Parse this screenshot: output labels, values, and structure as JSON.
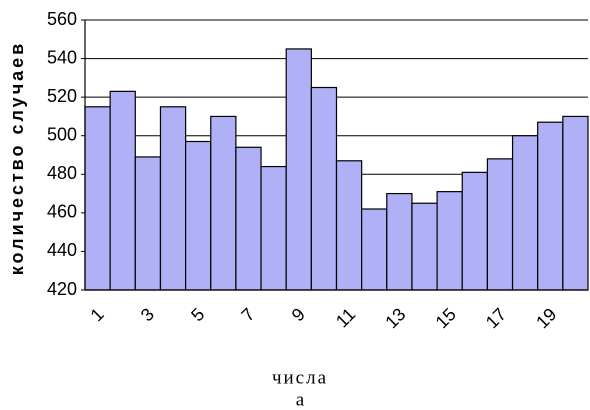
{
  "chart_data": {
    "type": "bar",
    "y_label": "количество случаев",
    "x_label": "числа",
    "caption": "а",
    "categories": [
      "1",
      null,
      "3",
      null,
      "5",
      null,
      "7",
      null,
      "9",
      null,
      "11",
      null,
      "13",
      null,
      "15",
      null,
      "17",
      null,
      "19",
      null
    ],
    "values": [
      515,
      523,
      489,
      515,
      497,
      510,
      494,
      484,
      545,
      525,
      487,
      462,
      470,
      465,
      471,
      481,
      488,
      500,
      507,
      510
    ],
    "color": "#b0b0f6",
    "ylim": [
      420,
      560
    ],
    "yticks": [
      420,
      440,
      460,
      480,
      500,
      520,
      540,
      560
    ],
    "grid": true
  }
}
